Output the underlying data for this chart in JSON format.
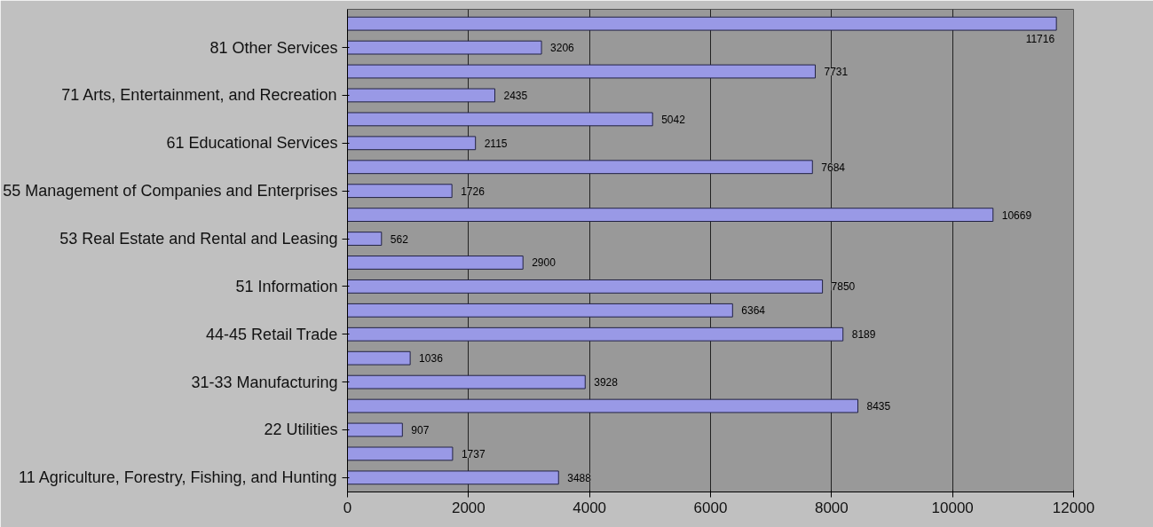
{
  "chart_data": {
    "type": "bar",
    "orientation": "horizontal",
    "categories": [
      null,
      "81 Other Services",
      null,
      "71 Arts, Entertainment, and Recreation",
      null,
      "61 Educational Services",
      null,
      "55 Management of Companies and Enterprises",
      null,
      "53 Real Estate and Rental and Leasing",
      null,
      "51 Information",
      null,
      "44-45 Retail Trade",
      null,
      "31-33 Manufacturing",
      null,
      "22 Utilities",
      null,
      "11 Agriculture, Forestry, Fishing, and Hunting"
    ],
    "values": [
      11716,
      3206,
      7731,
      2435,
      5042,
      2115,
      7684,
      1726,
      10669,
      562,
      2900,
      7850,
      6364,
      8189,
      1036,
      3928,
      8435,
      907,
      1737,
      3488
    ],
    "color": "#9999e6",
    "xlim": [
      0,
      12000
    ],
    "xticks": [
      0,
      2000,
      4000,
      6000,
      8000,
      10000,
      12000
    ],
    "grid": "x",
    "data_labels": true
  }
}
